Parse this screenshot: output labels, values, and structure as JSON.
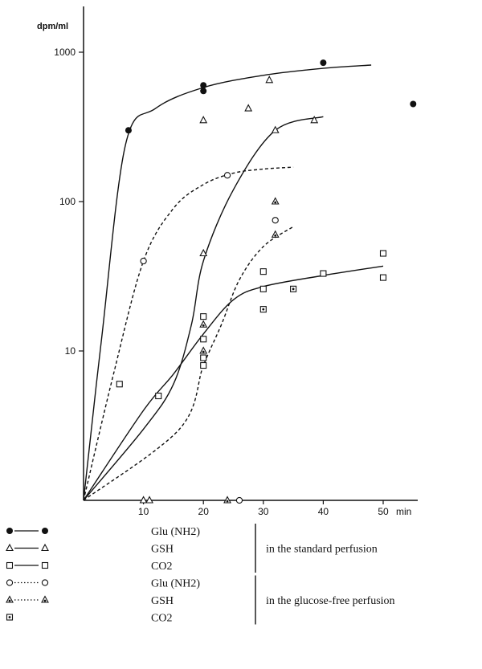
{
  "chart_data": {
    "type": "scatter",
    "yscale": "log",
    "ylabel": "dpm/ml",
    "xlabel": "min",
    "xlim": [
      0,
      55
    ],
    "ylim": [
      1,
      2000
    ],
    "xticks": [
      10,
      20,
      30,
      40,
      50
    ],
    "xtick_labels": [
      "10",
      "20",
      "30",
      "40",
      "50"
    ],
    "yticks": [
      10,
      100,
      1000
    ],
    "ytick_labels": [
      "10",
      "100",
      "1000"
    ],
    "grid": false,
    "legend_position": "bottom",
    "legend": [
      {
        "marker": "filled-circle",
        "line": "solid",
        "label": "Glu (NH2)",
        "group": "standard"
      },
      {
        "marker": "open-triangle",
        "line": "solid",
        "label": "GSH",
        "group": "standard"
      },
      {
        "marker": "open-square",
        "line": "solid",
        "label": "CO2",
        "group": "standard"
      },
      {
        "marker": "open-circle",
        "line": "dotted",
        "label": "Glu (NH2)",
        "group": "glucose-free"
      },
      {
        "marker": "dotted-triangle",
        "line": "dotted",
        "label": "GSH",
        "group": "glucose-free"
      },
      {
        "marker": "dotted-square",
        "line": "none",
        "label": "CO2",
        "group": "glucose-free"
      }
    ],
    "legend_groups": [
      {
        "id": "standard",
        "label": "in the standard perfusion"
      },
      {
        "id": "glucose-free",
        "label": "in the glucose-free perfusion"
      }
    ],
    "series": [
      {
        "marker": "filled-circle",
        "points": [
          [
            7.5,
            300
          ],
          [
            20,
            600
          ],
          [
            20,
            550
          ],
          [
            40,
            850
          ],
          [
            55,
            450
          ]
        ]
      },
      {
        "marker": "open-triangle",
        "points": [
          [
            10,
            1
          ],
          [
            11,
            1
          ],
          [
            20,
            45
          ],
          [
            20,
            350
          ],
          [
            27.5,
            420
          ],
          [
            31,
            650
          ],
          [
            32,
            300
          ],
          [
            38.5,
            350
          ]
        ]
      },
      {
        "marker": "open-square",
        "points": [
          [
            6,
            6
          ],
          [
            12.5,
            5
          ],
          [
            20,
            17
          ],
          [
            20,
            12
          ],
          [
            20,
            9
          ],
          [
            20,
            8
          ],
          [
            30,
            34
          ],
          [
            30,
            26
          ],
          [
            40,
            33
          ],
          [
            50,
            45
          ],
          [
            50,
            31
          ]
        ]
      },
      {
        "marker": "open-circle",
        "points": [
          [
            10,
            40
          ],
          [
            24,
            150
          ],
          [
            26,
            1
          ],
          [
            32,
            75
          ]
        ]
      },
      {
        "marker": "dotted-triangle",
        "points": [
          [
            20,
            15
          ],
          [
            20,
            10
          ],
          [
            24,
            1
          ],
          [
            32,
            60
          ],
          [
            32,
            100
          ]
        ]
      },
      {
        "marker": "dotted-square",
        "points": [
          [
            30,
            19
          ],
          [
            35,
            26
          ]
        ]
      }
    ],
    "curves": [
      {
        "style": "solid",
        "points": [
          [
            0,
            1
          ],
          [
            3,
            12
          ],
          [
            7,
            240
          ],
          [
            12,
            420
          ],
          [
            20,
            580
          ],
          [
            30,
            700
          ],
          [
            40,
            780
          ],
          [
            48,
            820
          ]
        ]
      },
      {
        "style": "solid",
        "points": [
          [
            0,
            1
          ],
          [
            10,
            3
          ],
          [
            15,
            6
          ],
          [
            18,
            15
          ],
          [
            20,
            40
          ],
          [
            25,
            120
          ],
          [
            32,
            300
          ],
          [
            40,
            370
          ]
        ]
      },
      {
        "style": "solid",
        "points": [
          [
            0,
            1
          ],
          [
            10,
            4
          ],
          [
            15,
            7
          ],
          [
            20,
            13
          ],
          [
            25,
            22
          ],
          [
            30,
            27
          ],
          [
            40,
            32
          ],
          [
            50,
            37
          ]
        ]
      },
      {
        "style": "dashed",
        "points": [
          [
            0,
            1
          ],
          [
            5,
            7
          ],
          [
            10,
            40
          ],
          [
            15,
            90
          ],
          [
            20,
            130
          ],
          [
            25,
            155
          ],
          [
            30,
            165
          ],
          [
            35,
            170
          ]
        ]
      },
      {
        "style": "dashed",
        "points": [
          [
            0,
            1
          ],
          [
            16,
            3
          ],
          [
            20,
            8
          ],
          [
            23,
            15
          ],
          [
            26,
            30
          ],
          [
            30,
            50
          ],
          [
            35,
            68
          ]
        ]
      }
    ]
  }
}
